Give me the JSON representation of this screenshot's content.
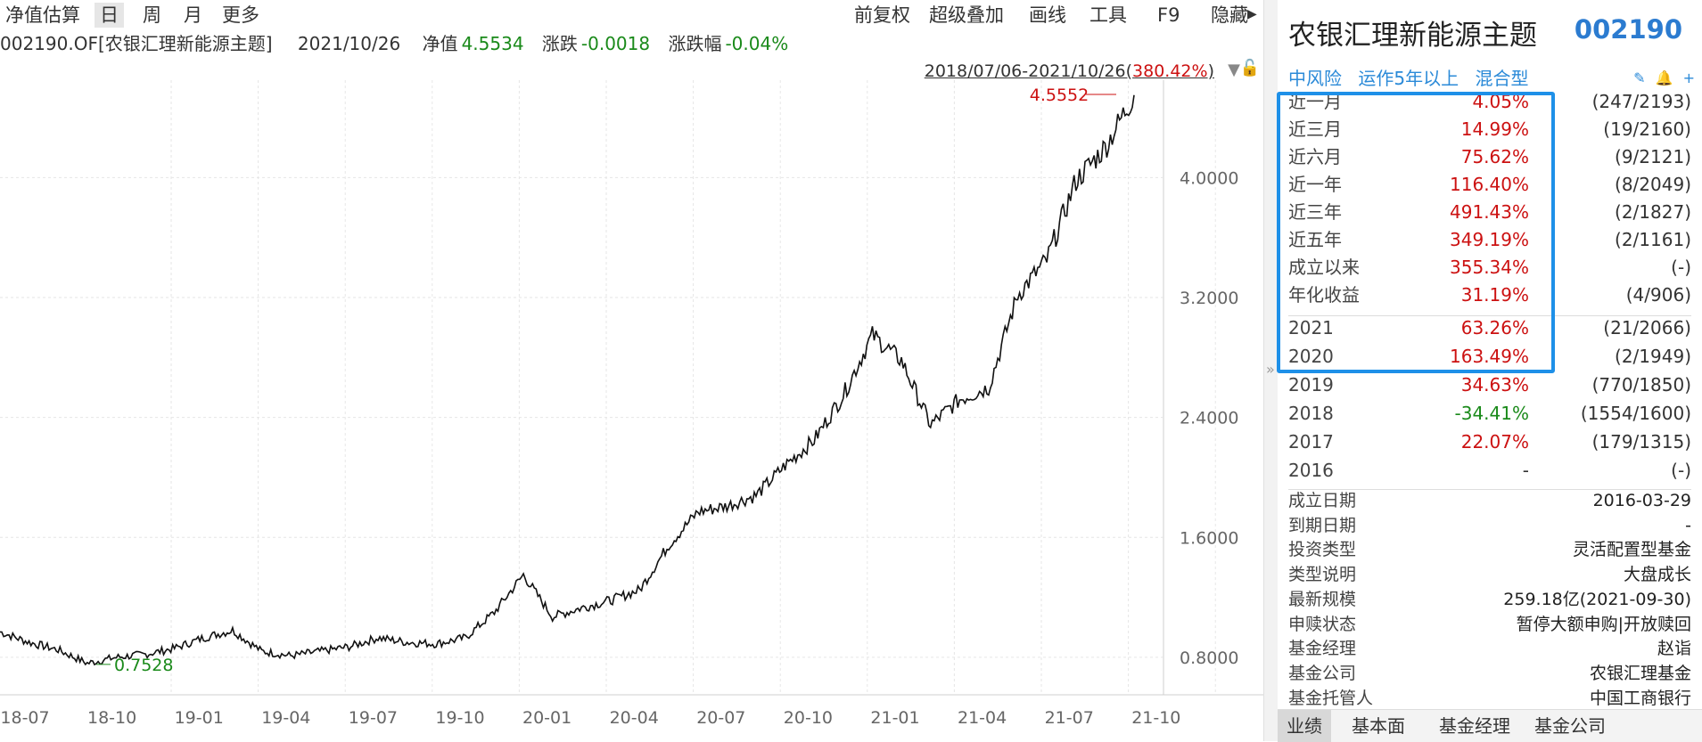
{
  "toolbar": {
    "left": [
      "净值估算",
      "日",
      "周",
      "月",
      "更多"
    ],
    "right": [
      "前复权",
      "超级叠加",
      "画线",
      "工具",
      "F9",
      "隐藏"
    ]
  },
  "info_line": {
    "code_name": "002190.OF[农银汇理新能源主题]",
    "date": "2021/10/26",
    "nav_label": "净值",
    "nav_value": "4.5534",
    "change_label": "涨跌",
    "change_value": "-0.0018",
    "pct_label": "涨跌幅",
    "pct_value": "-0.04%"
  },
  "range": {
    "text": "2018/07/06-2021/10/26(",
    "pct": "380.42%",
    "close": ")"
  },
  "chart_data": {
    "type": "line",
    "ylim": [
      0.55,
      4.65
    ],
    "y_ticks": [
      "4.0000",
      "3.2000",
      "2.4000",
      "1.6000",
      "0.8000"
    ],
    "y_tick_values": [
      4.0,
      3.2,
      2.4,
      1.6,
      0.8
    ],
    "x_ticks": [
      "18-07",
      "18-10",
      "19-01",
      "19-04",
      "19-07",
      "19-10",
      "20-01",
      "20-04",
      "20-07",
      "20-10",
      "21-01",
      "21-04",
      "21-07",
      "21-10"
    ],
    "max_label": "4.5552",
    "min_label": "0.7528",
    "series": [
      {
        "x": [
          "2018-07",
          "2018-08",
          "2018-09",
          "2018-10",
          "2018-11",
          "2018-12",
          "2019-01",
          "2019-02",
          "2019-03",
          "2019-04",
          "2019-05",
          "2019-06",
          "2019-07",
          "2019-08",
          "2019-09",
          "2019-10",
          "2019-11",
          "2019-12",
          "2020-01",
          "2020-02",
          "2020-03",
          "2020-04",
          "2020-05",
          "2020-06",
          "2020-07",
          "2020-08",
          "2020-09",
          "2020-10",
          "2020-11",
          "2020-12",
          "2021-01",
          "2021-02",
          "2021-03",
          "2021-04",
          "2021-05",
          "2021-06",
          "2021-07",
          "2021-08",
          "2021-09",
          "2021-10"
        ],
        "values": [
          0.97,
          0.9,
          0.85,
          0.76,
          0.8,
          0.82,
          0.86,
          0.93,
          0.98,
          0.84,
          0.81,
          0.84,
          0.87,
          0.93,
          0.9,
          0.89,
          0.93,
          1.1,
          1.35,
          1.07,
          1.13,
          1.18,
          1.25,
          1.55,
          1.77,
          1.81,
          1.88,
          2.08,
          2.25,
          2.55,
          2.95,
          2.78,
          2.35,
          2.52,
          2.6,
          3.22,
          3.45,
          3.98,
          4.2,
          4.55
        ]
      }
    ]
  },
  "panel": {
    "fund_name": "农银汇理新能源主题",
    "fund_code": "002190",
    "tags": [
      "中风险",
      "运作5年以上",
      "混合型"
    ],
    "tools": [
      "✎",
      "🔔",
      "+"
    ],
    "perf_rows": [
      {
        "label": "近一月",
        "value": "4.05%",
        "rank": "(247/2193)",
        "color": "#cc1111"
      },
      {
        "label": "近三月",
        "value": "14.99%",
        "rank": "(19/2160)",
        "color": "#cc1111"
      },
      {
        "label": "近六月",
        "value": "75.62%",
        "rank": "(9/2121)",
        "color": "#cc1111"
      },
      {
        "label": "近一年",
        "value": "116.40%",
        "rank": "(8/2049)",
        "color": "#cc1111"
      },
      {
        "label": "近三年",
        "value": "491.43%",
        "rank": "(2/1827)",
        "color": "#cc1111"
      },
      {
        "label": "近五年",
        "value": "349.19%",
        "rank": "(2/1161)",
        "color": "#cc1111"
      },
      {
        "label": "成立以来",
        "value": "355.34%",
        "rank": "(-)",
        "color": "#cc1111"
      },
      {
        "label": "年化收益",
        "value": "31.19%",
        "rank": "(4/906)",
        "color": "#cc1111"
      }
    ],
    "year_rows": [
      {
        "label": "2021",
        "value": "63.26%",
        "rank": "(21/2066)",
        "color": "#cc1111"
      },
      {
        "label": "2020",
        "value": "163.49%",
        "rank": "(2/1949)",
        "color": "#cc1111"
      },
      {
        "label": "2019",
        "value": "34.63%",
        "rank": "(770/1850)",
        "color": "#cc1111"
      },
      {
        "label": "2018",
        "value": "-34.41%",
        "rank": "(1554/1600)",
        "color": "#1a8a1a"
      },
      {
        "label": "2017",
        "value": "22.07%",
        "rank": "(179/1315)",
        "color": "#cc1111"
      },
      {
        "label": "2016",
        "value": "-",
        "rank": "(-)",
        "color": "#333333"
      }
    ],
    "info_rows": [
      {
        "k": "成立日期",
        "v": "2016-03-29"
      },
      {
        "k": "到期日期",
        "v": "-"
      },
      {
        "k": "投资类型",
        "v": "灵活配置型基金"
      },
      {
        "k": "类型说明",
        "v": "大盘成长"
      },
      {
        "k": "最新规模",
        "v": "259.18亿(2021-09-30)"
      },
      {
        "k": "申赎状态",
        "v": "暂停大额申购|开放赎回"
      },
      {
        "k": "基金经理",
        "v": "赵诣"
      },
      {
        "k": "基金公司",
        "v": "农银汇理基金"
      },
      {
        "k": "基金托管人",
        "v": "中国工商银行"
      }
    ],
    "bottom_tabs": [
      "业绩",
      "基本面",
      "基金经理",
      "基金公司"
    ]
  }
}
